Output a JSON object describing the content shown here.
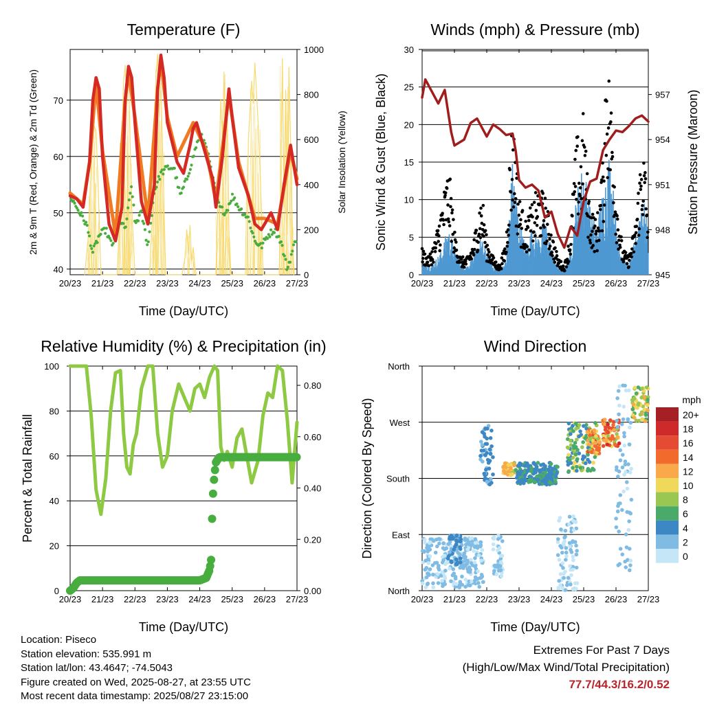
{
  "info": {
    "location": "Location: Piseco",
    "elevation": "Station elevation: 535.991 m",
    "latlon": "Station lat/lon: 43.4647; -74.5043",
    "created": "Figure created on Wed, 2025-08-27, at 23:55 UTC",
    "recent": "Most recent data timestamp: 2025/08/27 23:15:00"
  },
  "extremes": {
    "title": "Extremes For Past 7 Days",
    "subtitle": "(High/Low/Max Wind/Total Precipitation)",
    "values": "77.7/44.3/16.2/0.52"
  },
  "chart_data": [
    {
      "id": "temperature",
      "type": "line",
      "title": "Temperature (F)",
      "xlabel": "Time (Day/UTC)",
      "ylabel": "2m & 9m T (Red, Orange) & 2m Td (Green)",
      "y2label": "Solar Insolation (Yellow)",
      "x_ticks": [
        "20/23",
        "21/23",
        "22/23",
        "23/23",
        "24/23",
        "25/23",
        "26/23",
        "27/23"
      ],
      "xlim": [
        0,
        7
      ],
      "ylim": [
        39,
        79
      ],
      "y_ticks": [
        40,
        50,
        60,
        70
      ],
      "y2lim": [
        0,
        1000
      ],
      "y2_ticks": [
        0,
        200,
        400,
        600,
        800,
        1000
      ],
      "colors": {
        "t2": "#d52a23",
        "t9": "#f07a22",
        "td": "#4aac3c",
        "solar": "#f6d868"
      },
      "series": [
        {
          "key": "t2",
          "x": [
            0,
            0.2,
            0.4,
            0.6,
            0.7,
            0.8,
            0.9,
            1.0,
            1.2,
            1.4,
            1.6,
            1.7,
            1.8,
            1.9,
            2.0,
            2.2,
            2.4,
            2.6,
            2.7,
            2.8,
            2.9,
            3.0,
            3.3,
            3.5,
            3.7,
            3.8,
            3.9,
            4.0,
            4.2,
            4.4,
            4.5,
            4.7,
            4.9,
            5.0,
            5.2,
            5.5,
            5.7,
            5.9,
            6.0,
            6.2,
            6.4,
            6.6,
            6.8,
            7.0
          ],
          "values": [
            53,
            52.5,
            51,
            59,
            70,
            74,
            72,
            60,
            48,
            45,
            51,
            70,
            76,
            74,
            66,
            52,
            48,
            55,
            72,
            78,
            74,
            66,
            59,
            57,
            62,
            65,
            66,
            64,
            60,
            56,
            51,
            60,
            72,
            67,
            58,
            53,
            48,
            47,
            48,
            50,
            47,
            55,
            62,
            55
          ]
        },
        {
          "key": "t9",
          "x": [
            0,
            0.4,
            0.6,
            0.8,
            1.0,
            1.4,
            1.7,
            1.8,
            2.0,
            2.4,
            2.7,
            2.8,
            3.0,
            3.3,
            3.8,
            4.2,
            4.5,
            4.9,
            5.2,
            5.7,
            6.0,
            6.4,
            6.8,
            7.0
          ],
          "values": [
            53.5,
            51.5,
            59,
            73,
            61,
            46,
            70,
            75,
            67,
            49,
            72,
            77,
            67,
            60,
            66,
            61,
            52,
            71,
            59,
            49,
            49,
            48,
            61,
            56
          ]
        },
        {
          "key": "td",
          "x": [
            0,
            0.3,
            0.5,
            0.7,
            0.9,
            1.1,
            1.3,
            1.5,
            1.7,
            1.9,
            2.0,
            2.2,
            2.4,
            2.6,
            2.8,
            3.0,
            3.2,
            3.4,
            3.6,
            3.8,
            4.0,
            4.2,
            4.4,
            4.6,
            4.8,
            5.0,
            5.2,
            5.5,
            5.7,
            5.9,
            6.1,
            6.3,
            6.5,
            6.7,
            6.8,
            7.0
          ],
          "values": [
            53,
            50,
            48,
            43,
            46,
            47,
            44,
            49,
            47,
            55,
            48,
            50,
            44,
            54,
            57,
            58,
            58,
            53,
            56,
            60,
            64,
            62,
            56,
            51,
            50,
            53,
            51,
            49,
            45,
            44,
            46,
            47,
            45,
            40,
            42,
            46
          ]
        },
        {
          "key": "solar",
          "x": [
            0.45,
            0.55,
            0.62,
            0.68,
            0.74,
            0.8,
            0.86,
            0.95,
            1.45,
            1.55,
            1.6,
            1.65,
            1.7,
            1.75,
            1.8,
            1.85,
            1.9,
            2.0,
            2.45,
            2.55,
            2.6,
            2.65,
            2.7,
            2.75,
            2.8,
            2.85,
            2.95,
            3.45,
            3.55,
            3.6,
            3.65,
            3.7,
            3.75,
            3.8,
            3.85,
            3.9,
            3.95,
            4.5,
            4.55,
            4.6,
            4.65,
            4.7,
            4.75,
            4.8,
            4.85,
            4.9,
            4.95,
            5.45,
            5.5,
            5.6,
            5.65,
            5.7,
            5.8,
            5.85,
            5.9,
            5.95,
            6.45,
            6.5,
            6.55,
            6.6,
            6.65,
            6.7,
            6.75,
            6.8,
            6.85,
            6.9
          ],
          "values": [
            0,
            150,
            380,
            560,
            660,
            640,
            420,
            0,
            0,
            320,
            620,
            860,
            930,
            780,
            900,
            600,
            300,
            0,
            0,
            300,
            650,
            890,
            980,
            700,
            850,
            560,
            0,
            0,
            80,
            200,
            90,
            220,
            60,
            120,
            30,
            0,
            0,
            0,
            300,
            520,
            780,
            600,
            900,
            400,
            700,
            200,
            0,
            0,
            600,
            860,
            760,
            940,
            680,
            500,
            300,
            0,
            0,
            420,
            960,
            300,
            820,
            180,
            920,
            600,
            250,
            0
          ]
        }
      ]
    },
    {
      "id": "winds",
      "type": "scatter",
      "title": "Winds (mph) & Pressure (mb)",
      "xlabel": "Time (Day/UTC)",
      "ylabel": "Sonic Wind & Gust (Blue, Black)",
      "y2label": "Station Pressure (Maroon)",
      "x_ticks": [
        "20/23",
        "21/23",
        "22/23",
        "23/23",
        "24/23",
        "25/23",
        "26/23",
        "27/23"
      ],
      "xlim": [
        0,
        7
      ],
      "ylim": [
        0,
        30
      ],
      "y_ticks": [
        0,
        5,
        10,
        15,
        20,
        25,
        30
      ],
      "y2lim": [
        945,
        960
      ],
      "y2_ticks": [
        945,
        948,
        951,
        954,
        957
      ],
      "colors": {
        "wind": "#4f98d2",
        "gust": "#000000",
        "pressure": "#a01d1d"
      },
      "series": [
        {
          "key": "wind",
          "x": [
            0,
            0.3,
            0.6,
            0.8,
            1.0,
            1.2,
            1.4,
            1.6,
            1.8,
            2.0,
            2.2,
            2.4,
            2.6,
            2.8,
            3.0,
            3.2,
            3.4,
            3.6,
            3.8,
            4.0,
            4.2,
            4.4,
            4.6,
            4.8,
            5.0,
            5.2,
            5.4,
            5.6,
            5.8,
            6.0,
            6.2,
            6.4,
            6.6,
            6.8,
            7.0
          ],
          "values": [
            1.5,
            1,
            2.5,
            5,
            3,
            1.5,
            1,
            2,
            4,
            2.5,
            1,
            0.5,
            1.5,
            12,
            6,
            3,
            5,
            4,
            6,
            3,
            1,
            0.5,
            3,
            9,
            12,
            7,
            5,
            9,
            13,
            6,
            2,
            1,
            4,
            9,
            5
          ]
        },
        {
          "key": "gust",
          "x": [
            0,
            0.2,
            0.4,
            0.6,
            0.8,
            0.9,
            1.0,
            1.2,
            1.4,
            1.6,
            1.8,
            1.9,
            2.0,
            2.2,
            2.4,
            2.6,
            2.7,
            2.8,
            2.9,
            3.0,
            3.2,
            3.4,
            3.6,
            3.8,
            4.0,
            4.2,
            4.4,
            4.6,
            4.7,
            4.8,
            4.9,
            5.0,
            5.1,
            5.2,
            5.4,
            5.6,
            5.7,
            5.8,
            5.9,
            6.0,
            6.2,
            6.4,
            6.6,
            6.8,
            6.9,
            7.0
          ],
          "values": [
            3,
            2,
            4,
            8,
            12,
            10,
            5,
            2,
            2,
            4,
            9,
            8,
            4,
            2,
            1,
            4,
            13,
            18,
            14,
            9,
            6,
            8,
            10,
            9,
            5,
            2,
            1,
            5,
            12,
            16,
            14,
            19,
            12,
            8,
            6,
            13,
            28,
            22,
            18,
            10,
            3,
            2,
            6,
            15,
            13,
            6
          ]
        },
        {
          "key": "pressure",
          "x": [
            0,
            0.1,
            0.3,
            0.5,
            0.7,
            0.9,
            1.0,
            1.3,
            1.5,
            1.7,
            1.9,
            2.0,
            2.2,
            2.4,
            2.6,
            2.8,
            2.9,
            3.0,
            3.2,
            3.4,
            3.6,
            3.8,
            4.0,
            4.2,
            4.4,
            4.6,
            4.8,
            5.0,
            5.2,
            5.4,
            5.6,
            5.8,
            6.0,
            6.2,
            6.4,
            6.6,
            6.8,
            7.0
          ],
          "values": [
            956.8,
            958.0,
            957.2,
            956.4,
            957.3,
            954.5,
            953.6,
            954.0,
            955.1,
            955.4,
            954.6,
            954.2,
            955.0,
            954.7,
            954.3,
            954.4,
            953.2,
            951.3,
            950.8,
            951.0,
            950.6,
            948.8,
            949.2,
            947.7,
            946.8,
            948.2,
            947.6,
            949.9,
            951.2,
            951.4,
            953.3,
            954.0,
            954.6,
            954.5,
            954.9,
            955.4,
            955.6,
            955.2
          ]
        }
      ]
    },
    {
      "id": "humidity",
      "type": "line",
      "title": "Relative Humidity (%) & Precipitation (in)",
      "xlabel": "Time (Day/UTC)",
      "ylabel": "Percent & Total Rainfall",
      "x_ticks": [
        "20/23",
        "21/23",
        "22/23",
        "23/23",
        "24/23",
        "25/23",
        "26/23",
        "27/23"
      ],
      "xlim": [
        0,
        7
      ],
      "ylim": [
        0,
        100
      ],
      "y_ticks": [
        0,
        20,
        40,
        60,
        80,
        100
      ],
      "y2lim": [
        0,
        0.875
      ],
      "y2_ticks": [
        "0.00",
        "0.20",
        "0.40",
        "0.60",
        "0.80"
      ],
      "colors": {
        "rh": "#8ec944",
        "precip": "#46ad3e"
      },
      "series": [
        {
          "key": "rh",
          "x": [
            0,
            0.3,
            0.5,
            0.65,
            0.8,
            0.95,
            1.1,
            1.25,
            1.4,
            1.55,
            1.65,
            1.75,
            1.85,
            1.95,
            2.05,
            2.2,
            2.4,
            2.55,
            2.7,
            2.85,
            3.0,
            3.15,
            3.35,
            3.55,
            3.7,
            3.85,
            4.0,
            4.15,
            4.3,
            4.45,
            4.55,
            4.65,
            4.75,
            4.85,
            5.0,
            5.15,
            5.3,
            5.45,
            5.6,
            5.8,
            5.95,
            6.1,
            6.25,
            6.4,
            6.55,
            6.7,
            6.85,
            7.0
          ],
          "values": [
            100,
            100,
            100,
            78,
            45,
            34,
            50,
            80,
            97,
            98,
            70,
            55,
            52,
            65,
            70,
            90,
            100,
            100,
            70,
            55,
            60,
            80,
            92,
            85,
            80,
            90,
            92,
            86,
            95,
            100,
            98,
            64,
            58,
            62,
            55,
            68,
            72,
            60,
            48,
            58,
            78,
            88,
            86,
            100,
            98,
            76,
            48,
            75
          ]
        },
        {
          "key": "precip",
          "x": [
            0,
            0.1,
            0.2,
            0.3,
            0.5,
            1,
            1.5,
            2,
            2.5,
            3,
            3.5,
            4,
            4.2,
            4.3,
            4.35,
            4.38,
            4.4,
            4.45,
            4.5,
            4.6,
            5,
            5.5,
            6,
            6.5,
            7
          ],
          "values": [
            0.0,
            0.01,
            0.03,
            0.04,
            0.04,
            0.04,
            0.04,
            0.04,
            0.04,
            0.04,
            0.04,
            0.04,
            0.05,
            0.08,
            0.12,
            0.28,
            0.36,
            0.45,
            0.5,
            0.52,
            0.52,
            0.52,
            0.52,
            0.52,
            0.52
          ]
        }
      ]
    },
    {
      "id": "direction",
      "type": "scatter",
      "title": "Wind Direction",
      "xlabel": "Time (Day/UTC)",
      "ylabel": "Direction (Colored By Speed)",
      "x_ticks": [
        "20/23",
        "21/23",
        "22/23",
        "23/23",
        "24/23",
        "25/23",
        "26/23",
        "27/23"
      ],
      "xlim": [
        0,
        7
      ],
      "ylim": [
        0,
        360
      ],
      "y_ticks": [
        "North",
        "East",
        "South",
        "West",
        "North"
      ],
      "legend_title": "mph",
      "legend_labels": [
        "20+",
        "18",
        "16",
        "14",
        "12",
        "10",
        "8",
        "6",
        "4",
        "2",
        "0"
      ],
      "legend_colors": [
        "#a51f24",
        "#cf2a2a",
        "#e54b33",
        "#f26b2c",
        "#f9a94a",
        "#f0d95a",
        "#9ac652",
        "#49aa6a",
        "#3d87c4",
        "#7fbbe3",
        "#c4e6f7"
      ],
      "groups": [
        {
          "x0": 0,
          "x1": 1.9,
          "dir": [
            5,
            85
          ],
          "speed": [
            0,
            3
          ]
        },
        {
          "x0": 0.8,
          "x1": 1.2,
          "dir": [
            40,
            90
          ],
          "speed": [
            2,
            5
          ]
        },
        {
          "x0": 1.8,
          "x1": 2.2,
          "dir": [
            170,
            265
          ],
          "speed": [
            2,
            5
          ]
        },
        {
          "x0": 2.2,
          "x1": 2.5,
          "dir": [
            20,
            90
          ],
          "speed": [
            0,
            3
          ]
        },
        {
          "x0": 2.5,
          "x1": 2.9,
          "dir": [
            185,
            205
          ],
          "speed": [
            8,
            13
          ]
        },
        {
          "x0": 2.9,
          "x1": 4.2,
          "dir": [
            170,
            205
          ],
          "speed": [
            3,
            6
          ]
        },
        {
          "x0": 4.2,
          "x1": 4.8,
          "dir": [
            0,
            120
          ],
          "speed": [
            0,
            2
          ]
        },
        {
          "x0": 4.5,
          "x1": 5.4,
          "dir": [
            190,
            270
          ],
          "speed": [
            3,
            10
          ]
        },
        {
          "x0": 5.1,
          "x1": 5.5,
          "dir": [
            220,
            260
          ],
          "speed": [
            8,
            16
          ]
        },
        {
          "x0": 5.6,
          "x1": 6.1,
          "dir": [
            230,
            275
          ],
          "speed": [
            8,
            18
          ]
        },
        {
          "x0": 6.0,
          "x1": 6.5,
          "dir": [
            30,
            340
          ],
          "speed": [
            0,
            3
          ]
        },
        {
          "x0": 6.5,
          "x1": 7.0,
          "dir": [
            270,
            330
          ],
          "speed": [
            6,
            12
          ]
        }
      ]
    }
  ]
}
